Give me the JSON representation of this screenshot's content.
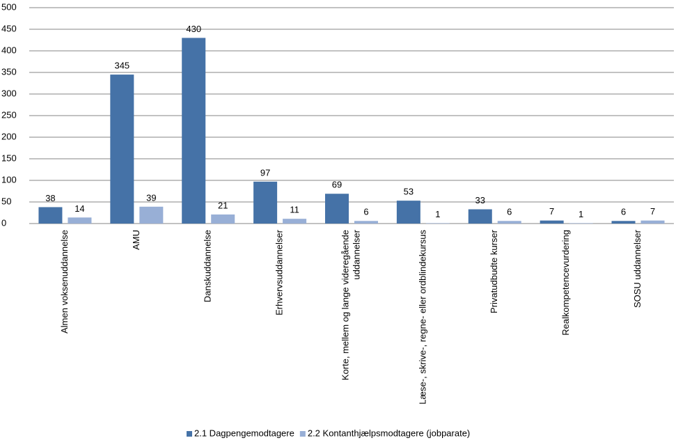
{
  "chart_data": {
    "type": "bar",
    "categories": [
      "Almen voksenuddannelse",
      "AMU",
      "Danskuddannelse",
      "Erhvervsuddannelser",
      [
        "Korte, mellem og lange videregående",
        "uddannelser"
      ],
      "Læse-, skrive-, regne- eller ordblindekursus",
      "Privatudbudte kurser",
      "Realkompetencevurdering",
      "SOSU uddannelser"
    ],
    "series": [
      {
        "name": "2.1 Dagpengemodtagere",
        "color": "#4572a7",
        "values": [
          38,
          345,
          430,
          97,
          69,
          53,
          33,
          7,
          6
        ]
      },
      {
        "name": "2.2 Kontanthjælpsmodtagere (jobparate)",
        "color": "#98afd6",
        "values": [
          14,
          39,
          21,
          11,
          6,
          1,
          6,
          1,
          7
        ]
      }
    ],
    "ylim": [
      0,
      500
    ],
    "yticks": [
      0,
      50,
      100,
      150,
      200,
      250,
      300,
      350,
      400,
      450,
      500
    ],
    "grid": true,
    "legend": "bottom"
  }
}
